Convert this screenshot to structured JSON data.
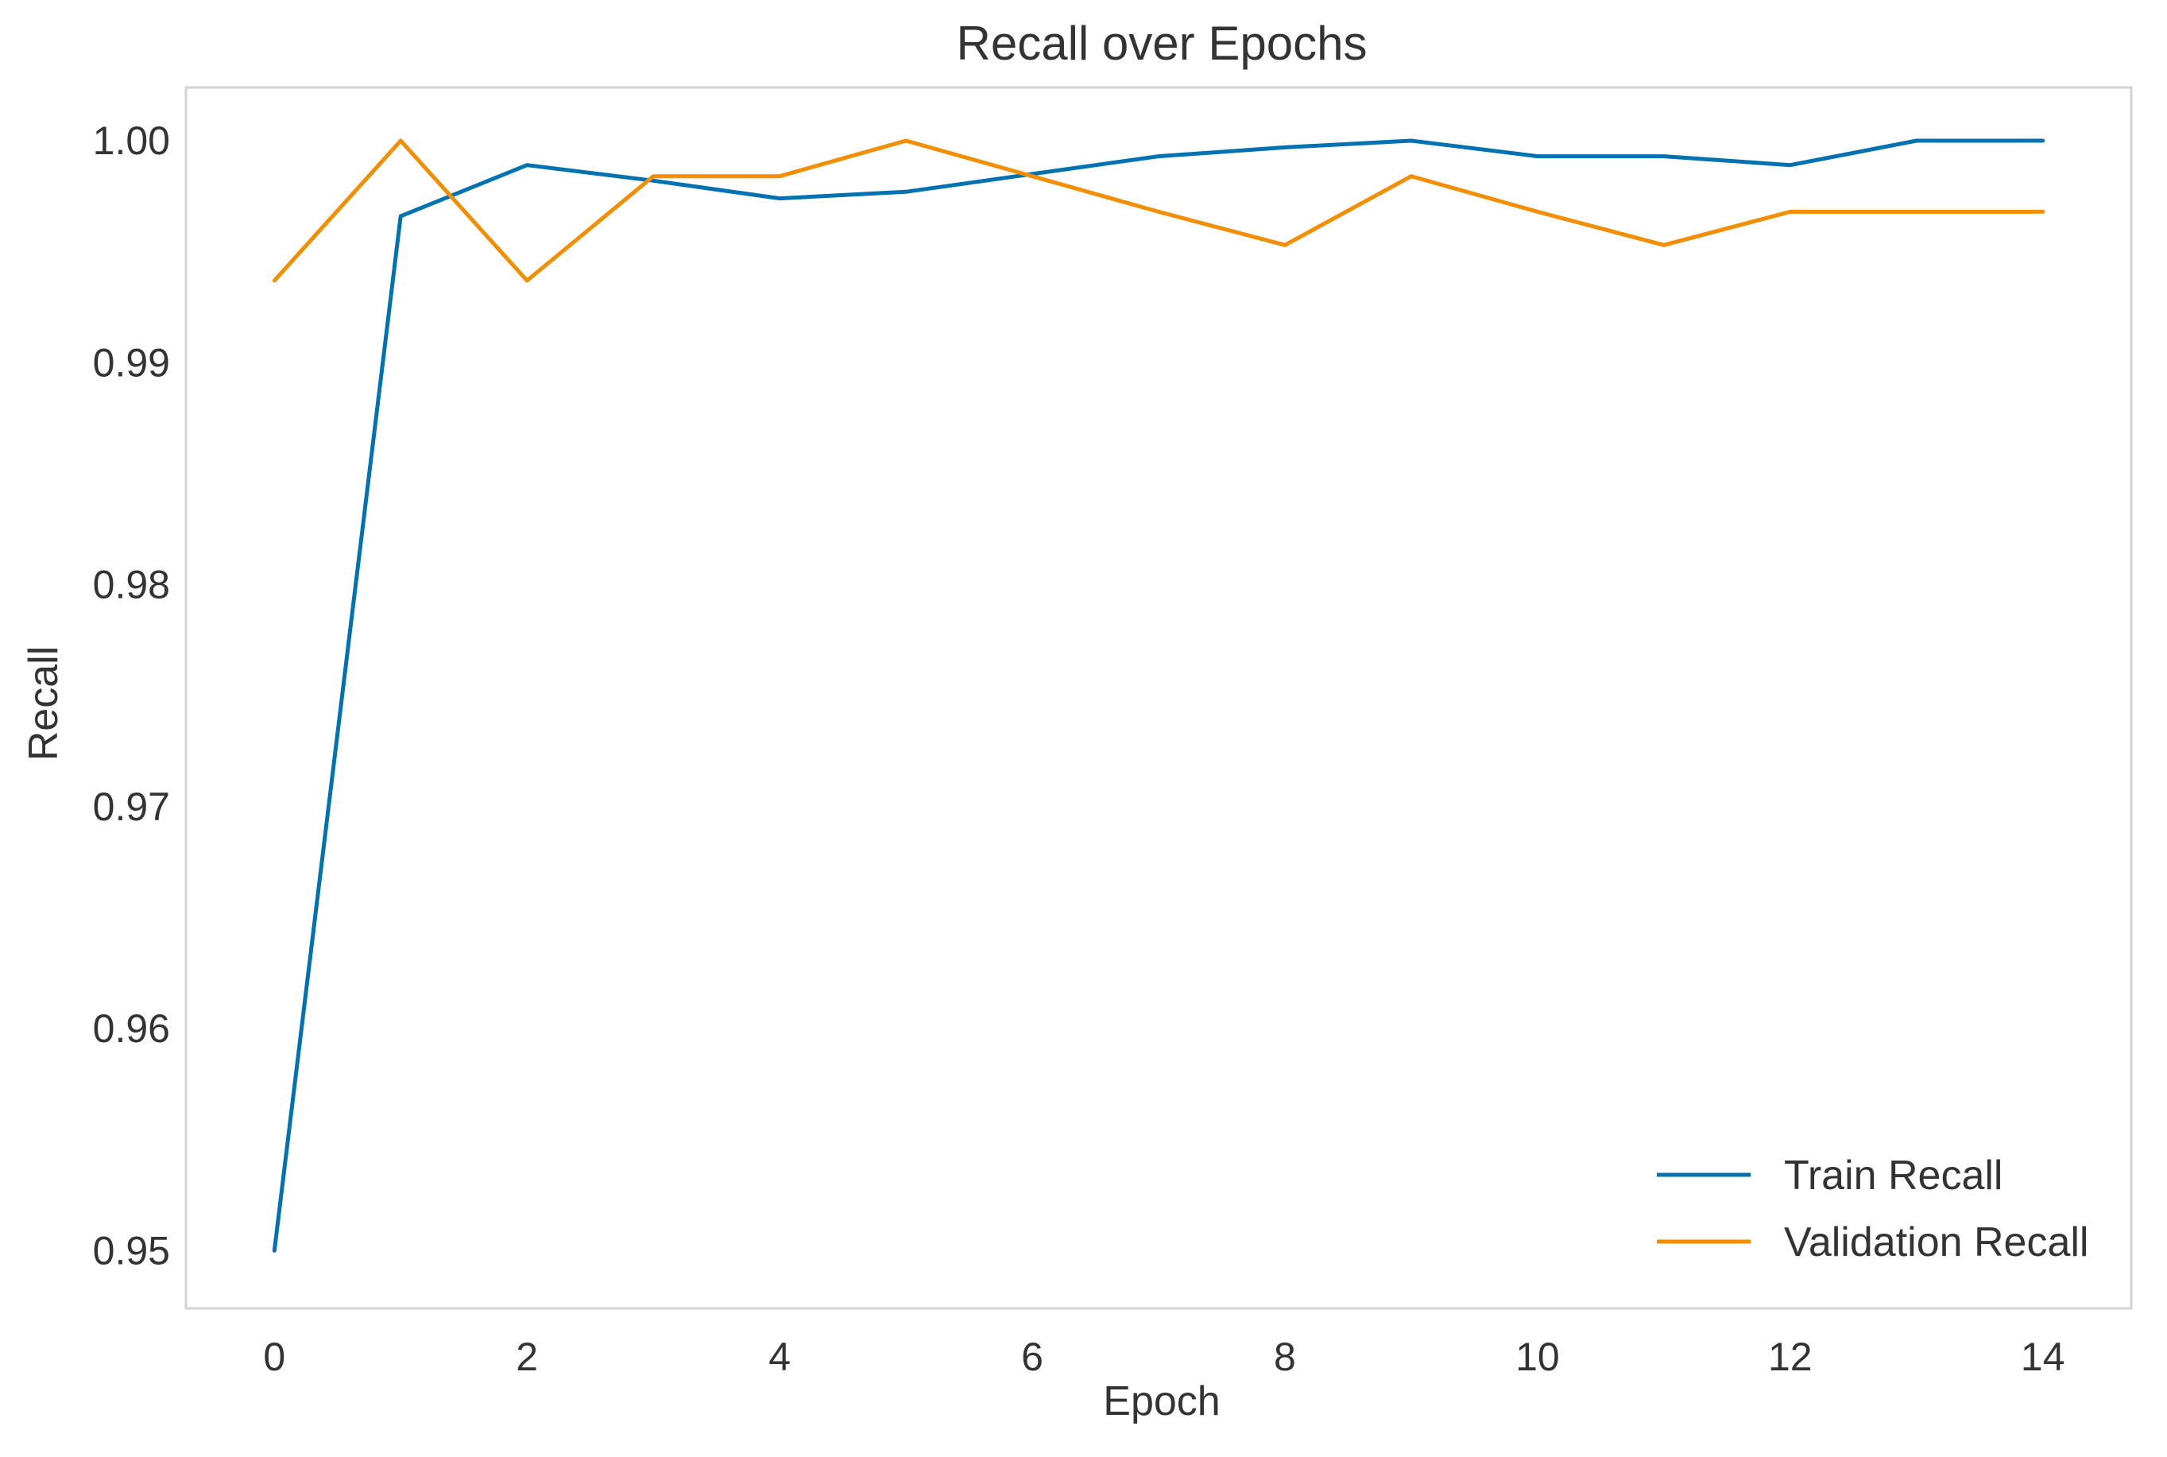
{
  "chart_data": {
    "type": "line",
    "title": "Recall over Epochs",
    "xlabel": "Epoch",
    "ylabel": "Recall",
    "xlim": [
      -0.7,
      14.7
    ],
    "ylim": [
      0.9474,
      1.0024
    ],
    "xticks": [
      0,
      2,
      4,
      6,
      8,
      10,
      12,
      14
    ],
    "xtick_labels": [
      "0",
      "2",
      "4",
      "6",
      "8",
      "10",
      "12",
      "14"
    ],
    "yticks": [
      0.95,
      0.96,
      0.97,
      0.98,
      0.99,
      1.0
    ],
    "ytick_labels": [
      "0.95",
      "0.96",
      "0.97",
      "0.98",
      "0.99",
      "1.00"
    ],
    "grid": false,
    "legend_position": "lower-right",
    "x": [
      0,
      1,
      2,
      3,
      4,
      5,
      6,
      7,
      8,
      9,
      10,
      11,
      12,
      13,
      14
    ],
    "series": [
      {
        "name": "Train Recall",
        "color": "#0072B2",
        "values": [
          0.95,
          0.9966,
          0.9989,
          0.9982,
          0.9974,
          0.9977,
          0.9985,
          0.9993,
          0.9997,
          1.0,
          0.9993,
          0.9993,
          0.9989,
          1.0,
          1.0
        ]
      },
      {
        "name": "Validation Recall",
        "color": "#F28E00",
        "values": [
          0.9937,
          1.0,
          0.9937,
          0.9984,
          0.9984,
          1.0,
          0.9984,
          0.9968,
          0.9953,
          0.9984,
          0.9968,
          0.9953,
          0.9968,
          0.9968,
          0.9968
        ]
      }
    ]
  }
}
